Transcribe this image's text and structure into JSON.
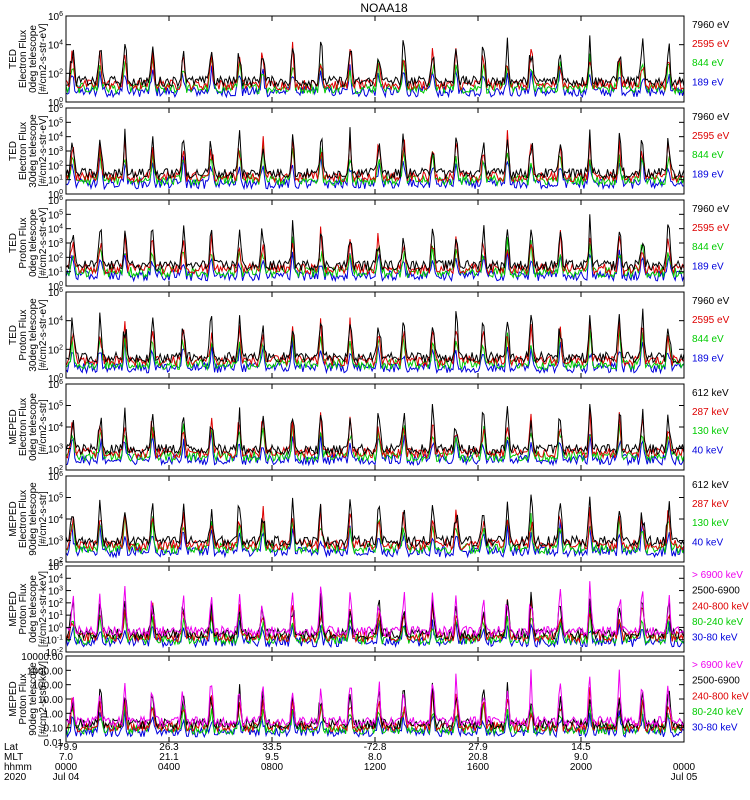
{
  "chart_data": {
    "type": "line",
    "title": "NOAA18",
    "x_range_hours": [
      0,
      24
    ],
    "panels": [
      {
        "id": "ted-e-0",
        "ylabel": [
          "TED",
          "Electron Flux",
          "0deg telescope",
          "[#/cm2-s-str-eV]"
        ],
        "scale": "log",
        "ylim": [
          1,
          1000000
        ],
        "ticks": [
          1,
          100,
          10000,
          1000000
        ],
        "tick_labels": [
          "10^0",
          "10^2",
          "10^4",
          "10^6"
        ],
        "series": [
          {
            "name": "7960 eV",
            "color": "#000000"
          },
          {
            "name": "2595 eV",
            "color": "#dd0000"
          },
          {
            "name": "844 eV",
            "color": "#00cc00"
          },
          {
            "name": "189 eV",
            "color": "#0000dd"
          }
        ]
      },
      {
        "id": "ted-e-30",
        "ylabel": [
          "TED",
          "Electron Flux",
          "30deg telescope",
          "[#/cm2-s-str-eV]"
        ],
        "scale": "log",
        "ylim": [
          1,
          1000000
        ],
        "ticks": [
          1,
          10,
          100,
          1000,
          10000,
          100000,
          1000000
        ],
        "tick_labels": [
          "10^0",
          "10^1",
          "10^2",
          "10^3",
          "10^4",
          "10^5",
          "10^6"
        ],
        "series": [
          {
            "name": "7960 eV",
            "color": "#000000"
          },
          {
            "name": "2595 eV",
            "color": "#dd0000"
          },
          {
            "name": "844 eV",
            "color": "#00cc00"
          },
          {
            "name": "189 eV",
            "color": "#0000dd"
          }
        ]
      },
      {
        "id": "ted-p-0",
        "ylabel": [
          "TED",
          "Proton Flux",
          "0deg telescope",
          "[#/cm2-s-str-eV]"
        ],
        "scale": "log",
        "ylim": [
          1,
          1000000
        ],
        "ticks": [
          1,
          10,
          100,
          1000,
          10000,
          100000,
          1000000
        ],
        "tick_labels": [
          "10^0",
          "10^1",
          "10^2",
          "10^3",
          "10^4",
          "10^5",
          "10^6"
        ],
        "series": [
          {
            "name": "7960 eV",
            "color": "#000000"
          },
          {
            "name": "2595 eV",
            "color": "#dd0000"
          },
          {
            "name": "844 eV",
            "color": "#00cc00"
          },
          {
            "name": "189 eV",
            "color": "#0000dd"
          }
        ]
      },
      {
        "id": "ted-p-30",
        "ylabel": [
          "TED",
          "Proton Flux",
          "30deg telescope",
          "[#/cm2-s-str-eV]"
        ],
        "scale": "log",
        "ylim": [
          1,
          1000000
        ],
        "ticks": [
          1,
          100,
          10000,
          1000000
        ],
        "tick_labels": [
          "10^0",
          "10^2",
          "10^4",
          "10^6"
        ],
        "series": [
          {
            "name": "7960 eV",
            "color": "#000000"
          },
          {
            "name": "2595 eV",
            "color": "#dd0000"
          },
          {
            "name": "844 eV",
            "color": "#00cc00"
          },
          {
            "name": "189 eV",
            "color": "#0000dd"
          }
        ]
      },
      {
        "id": "meped-e-0",
        "ylabel": [
          "MEPED",
          "Electron Flux",
          "0deg telescope",
          "[#/cm2-s-str]"
        ],
        "scale": "log",
        "ylim": [
          100,
          1000000
        ],
        "ticks": [
          100,
          1000,
          10000,
          100000,
          1000000
        ],
        "tick_labels": [
          "10^2",
          "10^3",
          "10^4",
          "10^5",
          "10^6"
        ],
        "series": [
          {
            "name": "612 keV",
            "color": "#000000"
          },
          {
            "name": "287 keV",
            "color": "#dd0000"
          },
          {
            "name": "130 keV",
            "color": "#00cc00"
          },
          {
            "name": "40 keV",
            "color": "#0000dd"
          }
        ]
      },
      {
        "id": "meped-e-90",
        "ylabel": [
          "MEPED",
          "Electron Flux",
          "90deg telescope",
          "[#/cm2-s-str]"
        ],
        "scale": "log",
        "ylim": [
          100,
          1000000
        ],
        "ticks": [
          100,
          1000,
          10000,
          100000,
          1000000
        ],
        "tick_labels": [
          "10^2",
          "10^3",
          "10^4",
          "10^5",
          "10^6"
        ],
        "series": [
          {
            "name": "612 keV",
            "color": "#000000"
          },
          {
            "name": "287 keV",
            "color": "#dd0000"
          },
          {
            "name": "130 keV",
            "color": "#00cc00"
          },
          {
            "name": "40 keV",
            "color": "#0000dd"
          }
        ]
      },
      {
        "id": "meped-p-0",
        "ylabel": [
          "MEPED",
          "Proton Flux",
          "0deg telescope",
          "[#/cm2-s-str-keV]"
        ],
        "scale": "log",
        "ylim": [
          0.01,
          100000
        ],
        "ticks": [
          0.01,
          0.1,
          1,
          10,
          100,
          1000,
          10000,
          100000
        ],
        "tick_labels": [
          "10^-2",
          "10^-1",
          "10^0",
          "10^1",
          "10^2",
          "10^3",
          "10^4",
          "10^5"
        ],
        "series": [
          {
            "name": "> 6900 keV",
            "color": "#ee00ee"
          },
          {
            "name": "2500-6900",
            "color": "#000000"
          },
          {
            "name": "240-800 keV",
            "color": "#dd0000"
          },
          {
            "name": "80-240 keV",
            "color": "#00cc00"
          },
          {
            "name": "30-80 keV",
            "color": "#0000dd"
          }
        ]
      },
      {
        "id": "meped-p-90",
        "ylabel": [
          "MEPED",
          "Proton Flux",
          "90deg telescope",
          "[#/cm2-s-str-keV]"
        ],
        "scale": "log",
        "ylim": [
          0.01,
          10000
        ],
        "ticks": [
          0.01,
          0.1,
          1,
          10,
          100,
          1000,
          10000
        ],
        "tick_labels": [
          "0.01",
          "0.10",
          "1.00",
          "10.00",
          "100.00",
          "1000.00",
          "10000.00"
        ],
        "series": [
          {
            "name": "> 6900 keV",
            "color": "#ee00ee"
          },
          {
            "name": "2500-6900",
            "color": "#000000"
          },
          {
            "name": "240-800 keV",
            "color": "#dd0000"
          },
          {
            "name": "80-240 keV",
            "color": "#00cc00"
          },
          {
            "name": "30-80 keV",
            "color": "#0000dd"
          }
        ]
      }
    ],
    "x_axis": {
      "row_labels": [
        "Lat",
        "MLT",
        "hhmm",
        "2020"
      ],
      "ticks": [
        {
          "hour": 0,
          "lat": "-79.9",
          "mlt": "7.0",
          "hhmm": "0000",
          "date": "Jul 04"
        },
        {
          "hour": 4,
          "lat": "26.3",
          "mlt": "21.1",
          "hhmm": "0400",
          "date": ""
        },
        {
          "hour": 8,
          "lat": "33.5",
          "mlt": "9.5",
          "hhmm": "0800",
          "date": ""
        },
        {
          "hour": 12,
          "lat": "-72.8",
          "mlt": "8.0",
          "hhmm": "1200",
          "date": ""
        },
        {
          "hour": 16,
          "lat": "27.9",
          "mlt": "20.8",
          "hhmm": "1600",
          "date": ""
        },
        {
          "hour": 20,
          "lat": "14.5",
          "mlt": "9.0",
          "hhmm": "2000",
          "date": ""
        },
        {
          "hour": 24,
          "lat": "",
          "mlt": "",
          "hhmm": "0000",
          "date": "Jul 05"
        }
      ]
    }
  }
}
